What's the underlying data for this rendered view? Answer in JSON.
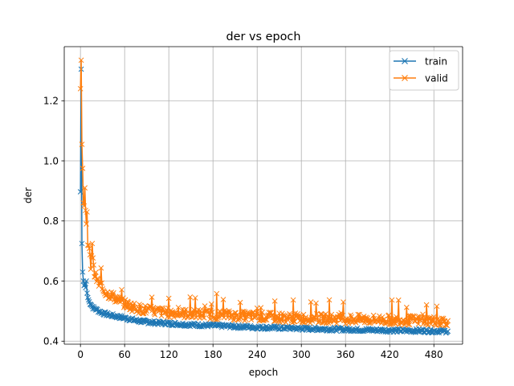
{
  "chart_data": {
    "type": "line",
    "title": "der vs epoch",
    "xlabel": "epoch",
    "ylabel": "der",
    "xlim": [
      -22,
      519
    ],
    "ylim": [
      0.39,
      1.38
    ],
    "xticks": [
      0,
      60,
      120,
      180,
      240,
      300,
      360,
      420,
      480
    ],
    "yticks": [
      0.4,
      0.6,
      0.8,
      1.0,
      1.2
    ],
    "ytick_labels": [
      "0.4",
      "0.6",
      "0.8",
      "1.0",
      "1.2"
    ],
    "grid": true,
    "legend_position": "top-right",
    "marker": "x",
    "n_points": 500,
    "series": [
      {
        "name": "train",
        "color": "#1f77b4",
        "points": [
          [
            0,
            0.897
          ],
          [
            1,
            1.305
          ],
          [
            2,
            0.725
          ],
          [
            3,
            0.63
          ],
          [
            4,
            0.6
          ],
          [
            5,
            0.585
          ],
          [
            6,
            0.59
          ],
          [
            7,
            0.578
          ],
          [
            8,
            0.6
          ],
          [
            9,
            0.56
          ],
          [
            10,
            0.545
          ],
          [
            12,
            0.53
          ],
          [
            14,
            0.525
          ],
          [
            16,
            0.515
          ],
          [
            18,
            0.51
          ],
          [
            20,
            0.508
          ],
          [
            25,
            0.5
          ],
          [
            30,
            0.494
          ],
          [
            35,
            0.49
          ],
          [
            40,
            0.487
          ],
          [
            50,
            0.482
          ],
          [
            60,
            0.477
          ],
          [
            70,
            0.472
          ],
          [
            80,
            0.467
          ],
          [
            90,
            0.464
          ],
          [
            100,
            0.462
          ],
          [
            120,
            0.459
          ],
          [
            140,
            0.456
          ],
          [
            160,
            0.454
          ],
          [
            180,
            0.452
          ],
          [
            200,
            0.45
          ],
          [
            220,
            0.448
          ],
          [
            240,
            0.446
          ],
          [
            260,
            0.445
          ],
          [
            280,
            0.444
          ],
          [
            300,
            0.442
          ],
          [
            320,
            0.441
          ],
          [
            340,
            0.44
          ],
          [
            360,
            0.439
          ],
          [
            380,
            0.438
          ],
          [
            400,
            0.437
          ],
          [
            420,
            0.436
          ],
          [
            440,
            0.435
          ],
          [
            460,
            0.435
          ],
          [
            480,
            0.434
          ],
          [
            499,
            0.433
          ]
        ]
      },
      {
        "name": "valid",
        "color": "#ff7f0e",
        "points": [
          [
            0,
            1.24
          ],
          [
            1,
            1.335
          ],
          [
            2,
            1.055
          ],
          [
            3,
            0.975
          ],
          [
            4,
            0.86
          ],
          [
            5,
            0.85
          ],
          [
            6,
            0.91
          ],
          [
            7,
            0.835
          ],
          [
            8,
            0.79
          ],
          [
            9,
            0.83
          ],
          [
            10,
            0.72
          ],
          [
            12,
            0.7
          ],
          [
            14,
            0.65
          ],
          [
            16,
            0.73
          ],
          [
            18,
            0.64
          ],
          [
            20,
            0.62
          ],
          [
            25,
            0.59
          ],
          [
            30,
            0.575
          ],
          [
            35,
            0.56
          ],
          [
            40,
            0.555
          ],
          [
            50,
            0.54
          ],
          [
            60,
            0.525
          ],
          [
            70,
            0.515
          ],
          [
            80,
            0.508
          ],
          [
            90,
            0.503
          ],
          [
            100,
            0.5
          ],
          [
            120,
            0.495
          ],
          [
            140,
            0.492
          ],
          [
            160,
            0.49
          ],
          [
            180,
            0.488
          ],
          [
            200,
            0.486
          ],
          [
            220,
            0.484
          ],
          [
            240,
            0.482
          ],
          [
            260,
            0.48
          ],
          [
            280,
            0.478
          ],
          [
            300,
            0.477
          ],
          [
            320,
            0.476
          ],
          [
            340,
            0.475
          ],
          [
            360,
            0.474
          ],
          [
            380,
            0.473
          ],
          [
            400,
            0.472
          ],
          [
            420,
            0.471
          ],
          [
            440,
            0.47
          ],
          [
            460,
            0.469
          ],
          [
            480,
            0.468
          ],
          [
            499,
            0.467
          ]
        ]
      }
    ]
  }
}
